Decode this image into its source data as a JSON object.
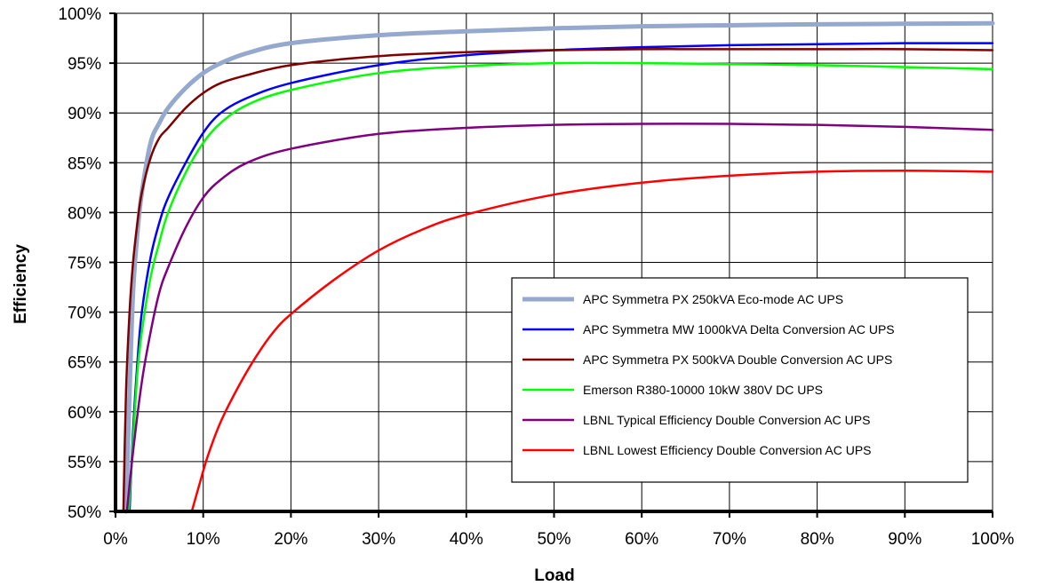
{
  "chart_data": {
    "type": "line",
    "title": "",
    "xlabel": "Load",
    "ylabel": "Efficiency",
    "xlim": [
      0,
      100
    ],
    "ylim": [
      50,
      100
    ],
    "x_ticks": [
      "0%",
      "10%",
      "20%",
      "30%",
      "40%",
      "50%",
      "60%",
      "70%",
      "80%",
      "90%",
      "100%"
    ],
    "y_ticks": [
      "50%",
      "55%",
      "60%",
      "65%",
      "70%",
      "75%",
      "80%",
      "85%",
      "90%",
      "95%",
      "100%"
    ],
    "grid": true,
    "legend_position": "bottom-right",
    "series": [
      {
        "name": "APC Symmetra PX 250kVA Eco-mode AC UPS",
        "color": "#95A9CE",
        "x": [
          1.2,
          1.6,
          2,
          2.5,
          3,
          4,
          5,
          6,
          8,
          10,
          12,
          15,
          20,
          30,
          40,
          50,
          60,
          70,
          80,
          90,
          100
        ],
        "y": [
          50,
          62,
          72,
          78,
          82,
          87,
          89,
          90.5,
          92.5,
          94,
          95,
          96,
          97,
          97.8,
          98.2,
          98.5,
          98.7,
          98.8,
          98.9,
          98.95,
          99
        ]
      },
      {
        "name": "APC Symmetra MW 1000kVA Delta Conversion AC UPS",
        "color": "#0000FF",
        "x": [
          1.6,
          2,
          2.5,
          3,
          4,
          5,
          6,
          8,
          10,
          12,
          15,
          20,
          30,
          40,
          50,
          60,
          70,
          80,
          90,
          100
        ],
        "y": [
          50,
          58,
          65,
          70,
          75.5,
          79,
          81.5,
          85,
          88,
          90,
          91.5,
          93,
          94.8,
          95.8,
          96.3,
          96.6,
          96.8,
          96.9,
          97,
          97
        ]
      },
      {
        "name": "APC Symmetra PX 500kVA Double Conversion AC UPS",
        "color": "#800000",
        "x": [
          0.9,
          1.2,
          1.6,
          2,
          2.5,
          3,
          4,
          5,
          6,
          8,
          10,
          12,
          15,
          20,
          30,
          40,
          50,
          60,
          70,
          80,
          90,
          100
        ],
        "y": [
          50,
          62,
          70,
          75,
          79,
          82,
          85.5,
          87.5,
          88.5,
          90.5,
          92,
          93,
          93.8,
          94.8,
          95.7,
          96.1,
          96.3,
          96.4,
          96.4,
          96.4,
          96.4,
          96.3
        ]
      },
      {
        "name": "Emerson R380-10000 10kW 380V DC UPS",
        "color": "#00FF00",
        "x": [
          1.5,
          2,
          2.5,
          3,
          4,
          5,
          6,
          8,
          10,
          12,
          15,
          20,
          30,
          40,
          50,
          60,
          70,
          80,
          90,
          100
        ],
        "y": [
          50,
          57,
          64,
          68,
          73.5,
          77,
          80,
          84,
          87,
          89,
          90.8,
          92.3,
          94,
          94.7,
          95,
          95,
          94.9,
          94.8,
          94.6,
          94.4
        ]
      },
      {
        "name": "LBNL Typical Efficiency Double Conversion AC UPS",
        "color": "#800080",
        "x": [
          1.3,
          2,
          3,
          4,
          5,
          6,
          8,
          10,
          12,
          15,
          20,
          30,
          40,
          50,
          60,
          70,
          80,
          90,
          100
        ],
        "y": [
          50,
          56,
          63,
          68,
          72,
          74.5,
          78.5,
          81.5,
          83.3,
          85,
          86.4,
          87.9,
          88.5,
          88.8,
          88.9,
          88.9,
          88.8,
          88.6,
          88.3
        ]
      },
      {
        "name": "LBNL Lowest Efficiency Double Conversion AC UPS",
        "color": "#FF0000",
        "x": [
          8.7,
          9.5,
          10.5,
          12,
          14,
          16,
          18,
          20,
          25,
          30,
          35,
          40,
          50,
          60,
          70,
          80,
          90,
          100
        ],
        "y": [
          50,
          52.5,
          55.5,
          59,
          62.5,
          65.5,
          68,
          69.8,
          73.3,
          76.2,
          78.3,
          79.8,
          81.8,
          83,
          83.7,
          84.1,
          84.2,
          84.1
        ]
      }
    ]
  }
}
